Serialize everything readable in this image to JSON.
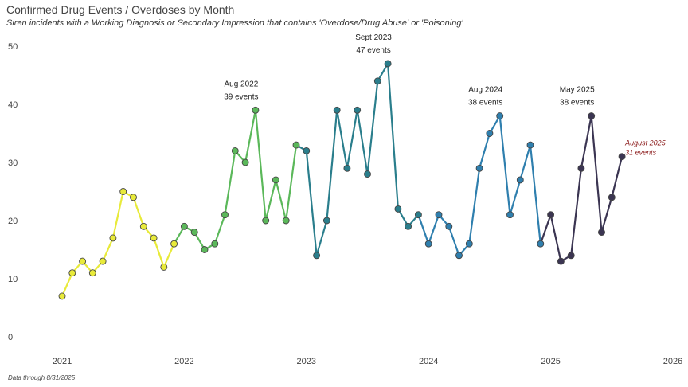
{
  "title": "Confirmed Drug Events / Overdoses by Month",
  "subtitle": "Siren incidents with a Working Diagnosis or Secondary Impression that contains 'Overdose/Drug Abuse' or 'Poisoning'",
  "footnote": "Data through 8/31/2025",
  "chart_data": {
    "type": "line",
    "title": "Confirmed Drug Events / Overdoses by Month",
    "xlabel": "",
    "ylabel": "",
    "ylim": [
      0,
      50
    ],
    "yticks": [
      "0",
      "10",
      "20",
      "30",
      "40",
      "50"
    ],
    "xlim": [
      2021,
      2026
    ],
    "xticks": [
      "2021",
      "2022",
      "2023",
      "2024",
      "2025",
      "2026"
    ],
    "grid": false,
    "legend": "none",
    "series": [
      {
        "color": "#e8ea3a",
        "points": [
          {
            "x": "2021-01",
            "y": 7
          },
          {
            "x": "2021-02",
            "y": 11
          },
          {
            "x": "2021-03",
            "y": 13
          },
          {
            "x": "2021-04",
            "y": 11
          },
          {
            "x": "2021-05",
            "y": 13
          },
          {
            "x": "2021-06",
            "y": 17
          },
          {
            "x": "2021-07",
            "y": 25
          },
          {
            "x": "2021-08",
            "y": 24
          },
          {
            "x": "2021-09",
            "y": 19
          },
          {
            "x": "2021-10",
            "y": 17
          },
          {
            "x": "2021-11",
            "y": 12
          },
          {
            "x": "2021-12",
            "y": 16
          }
        ]
      },
      {
        "color": "#5bb85a",
        "points": [
          {
            "x": "2021-12",
            "y": 16
          },
          {
            "x": "2022-01",
            "y": 19
          },
          {
            "x": "2022-02",
            "y": 18
          },
          {
            "x": "2022-03",
            "y": 15
          },
          {
            "x": "2022-04",
            "y": 16
          },
          {
            "x": "2022-05",
            "y": 21
          },
          {
            "x": "2022-06",
            "y": 32
          },
          {
            "x": "2022-07",
            "y": 30
          },
          {
            "x": "2022-08",
            "y": 39
          },
          {
            "x": "2022-09",
            "y": 20
          },
          {
            "x": "2022-10",
            "y": 27
          },
          {
            "x": "2022-11",
            "y": 20
          },
          {
            "x": "2022-12",
            "y": 33
          }
        ]
      },
      {
        "color": "#2a7e8c",
        "points": [
          {
            "x": "2022-12",
            "y": 33
          },
          {
            "x": "2023-01",
            "y": 32
          },
          {
            "x": "2023-02",
            "y": 14
          },
          {
            "x": "2023-03",
            "y": 20
          },
          {
            "x": "2023-04",
            "y": 39
          },
          {
            "x": "2023-05",
            "y": 29
          },
          {
            "x": "2023-06",
            "y": 39
          },
          {
            "x": "2023-07",
            "y": 28
          },
          {
            "x": "2023-08",
            "y": 44
          },
          {
            "x": "2023-09",
            "y": 47
          },
          {
            "x": "2023-10",
            "y": 22
          },
          {
            "x": "2023-11",
            "y": 19
          },
          {
            "x": "2023-12",
            "y": 21
          }
        ]
      },
      {
        "color": "#2f7fae",
        "points": [
          {
            "x": "2023-12",
            "y": 21
          },
          {
            "x": "2024-01",
            "y": 16
          },
          {
            "x": "2024-02",
            "y": 21
          },
          {
            "x": "2024-03",
            "y": 19
          },
          {
            "x": "2024-04",
            "y": 14
          },
          {
            "x": "2024-05",
            "y": 16
          },
          {
            "x": "2024-06",
            "y": 29
          },
          {
            "x": "2024-07",
            "y": 35
          },
          {
            "x": "2024-08",
            "y": 38
          },
          {
            "x": "2024-09",
            "y": 21
          },
          {
            "x": "2024-10",
            "y": 27
          },
          {
            "x": "2024-11",
            "y": 33
          },
          {
            "x": "2024-12",
            "y": 16
          }
        ]
      },
      {
        "color": "#3b3552",
        "points": [
          {
            "x": "2024-12",
            "y": 16
          },
          {
            "x": "2025-01",
            "y": 21
          },
          {
            "x": "2025-02",
            "y": 13
          },
          {
            "x": "2025-03",
            "y": 14
          },
          {
            "x": "2025-04",
            "y": 29
          },
          {
            "x": "2025-05",
            "y": 38
          },
          {
            "x": "2025-06",
            "y": 18
          },
          {
            "x": "2025-07",
            "y": 24
          },
          {
            "x": "2025-08",
            "y": 31
          }
        ]
      }
    ],
    "annotations": [
      {
        "x": "2022-08",
        "y": 39,
        "lines": [
          "Aug 2022",
          "39 events"
        ],
        "color": "#222222"
      },
      {
        "x": "2023-09",
        "y": 47,
        "lines": [
          "Sept 2023",
          "47 events"
        ],
        "color": "#222222"
      },
      {
        "x": "2024-08",
        "y": 38,
        "lines": [
          "Aug 2024",
          "38 events"
        ],
        "color": "#222222"
      },
      {
        "x": "2025-05",
        "y": 38,
        "lines": [
          "May 2025",
          "38 events"
        ],
        "color": "#222222"
      },
      {
        "x": "2025-08",
        "y": 31,
        "lines": [
          "August 2025",
          "31 events"
        ],
        "color": "#8b1a1a"
      }
    ]
  }
}
